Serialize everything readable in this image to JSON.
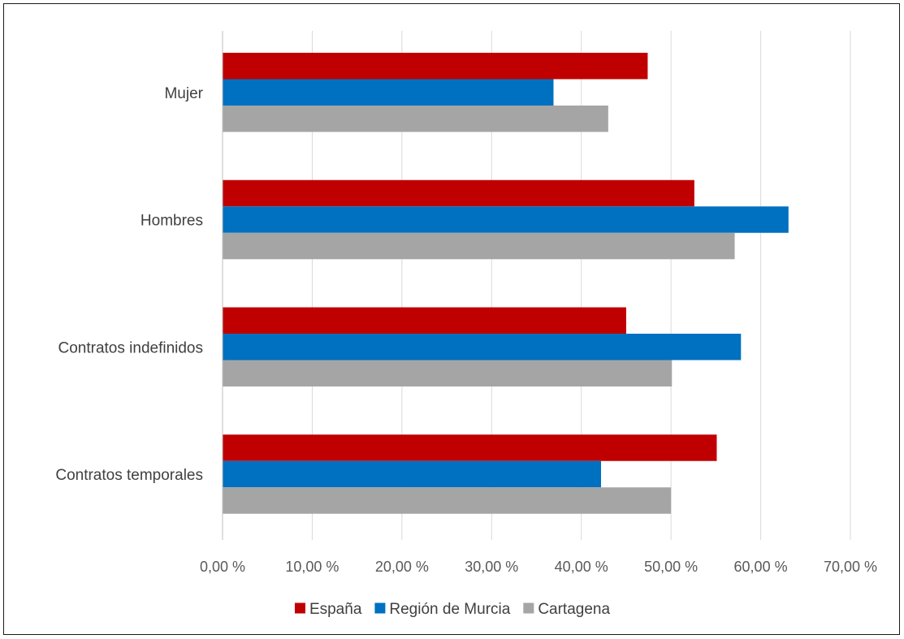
{
  "chart_data": {
    "type": "bar",
    "orientation": "horizontal",
    "categories": [
      "Mujer",
      "Hombres",
      "Contratos indefinidos",
      "Contratos temporales"
    ],
    "series": [
      {
        "name": "España",
        "color": "#c00000",
        "values": [
          47.4,
          52.6,
          45.0,
          55.1
        ]
      },
      {
        "name": "Región de Murcia",
        "color": "#0070c0",
        "values": [
          36.9,
          63.1,
          57.8,
          42.2
        ]
      },
      {
        "name": "Cartagena",
        "color": "#a5a5a5",
        "values": [
          43.0,
          57.1,
          50.1,
          50.0
        ]
      }
    ],
    "xlim": [
      0,
      70
    ],
    "xticks": [
      "0,00 %",
      "10,00 %",
      "20,00 %",
      "30,00 %",
      "40,00 %",
      "50,00 %",
      "60,00 %",
      "70,00 %"
    ],
    "grid": "vertical",
    "legend_position": "bottom"
  }
}
